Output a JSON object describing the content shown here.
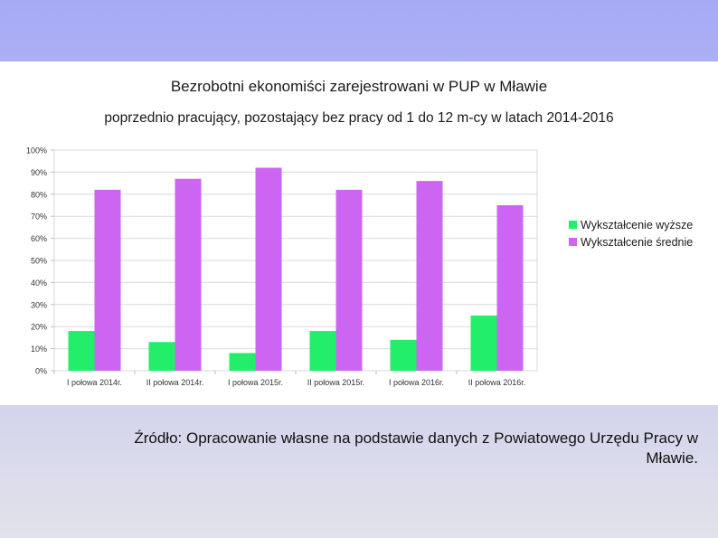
{
  "chart_data": {
    "type": "bar",
    "title": "Bezrobotni ekonomiści zarejestrowani w PUP w Mławie",
    "subtitle": "poprzednio pracujący, pozostający bez pracy od 1 do 12 m-cy w latach 2014-2016",
    "categories": [
      "I połowa 2014r.",
      "II połowa 2014r.",
      "I połowa 2015r.",
      "II połowa 2015r.",
      "I połowa 2016r.",
      "II połowa 2016r."
    ],
    "series": [
      {
        "name": "Wykształcenie wyższe",
        "color": "#22ee6a",
        "values": [
          18,
          13,
          8,
          18,
          14,
          25
        ]
      },
      {
        "name": "Wykształcenie średnie",
        "color": "#cc66f2",
        "values": [
          82,
          87,
          92,
          82,
          86,
          75
        ]
      }
    ],
    "y_ticks": [
      "0%",
      "10%",
      "20%",
      "30%",
      "40%",
      "50%",
      "60%",
      "70%",
      "80%",
      "90%",
      "100%"
    ],
    "ylim": [
      0,
      100
    ],
    "grid": true,
    "legend_position": "right"
  },
  "caption": {
    "line1": "Źródło: Opracowanie własne na podstawie danych z Powiatowego Urzędu Pracy w",
    "line2": "Mławie."
  }
}
